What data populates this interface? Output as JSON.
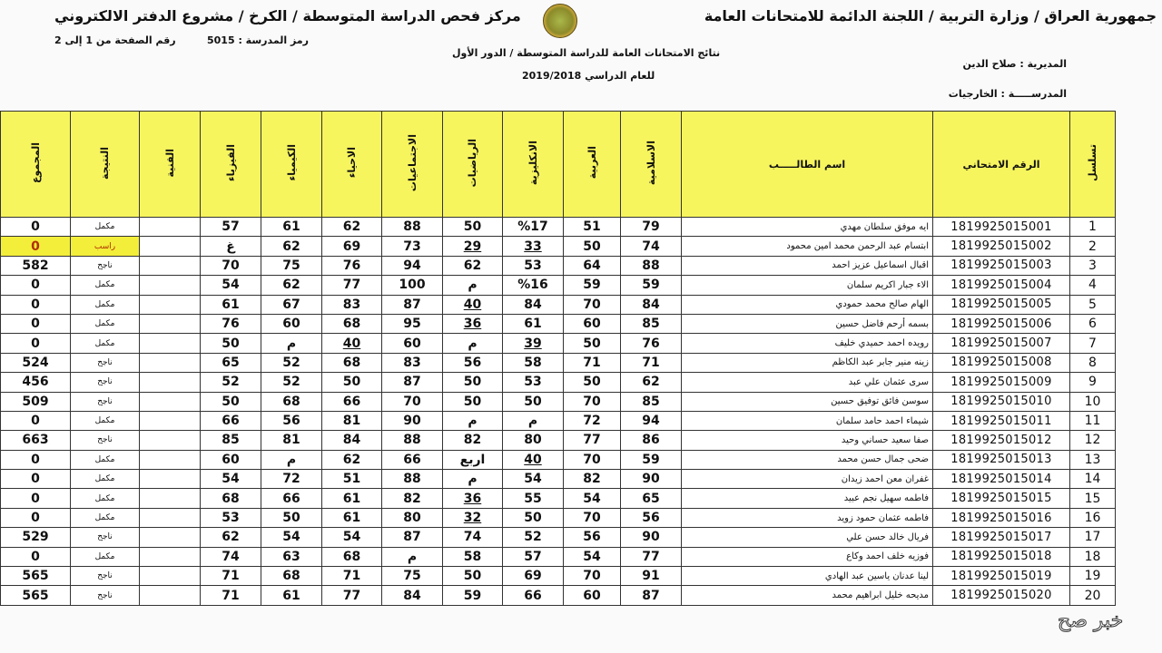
{
  "header": {
    "right_title": "جمهورية العراق / وزارة التربية / اللجنة الدائمة للامتحانات العامة",
    "left_title": "مركز فحص الدراسة المتوسطة / الكرخ / مشروع الدفتر الالكتروني",
    "page_info": "رقم الصفحة من  1 إلى 2",
    "school_code": "رمز المدرسة :  5015",
    "results_title": "نتائج الامتحانات العامة للدراسة المتوسطة / الدور الأول",
    "academic_year": "للعام الدراسي   2019/2018",
    "directorate": "المديرية :   صلاح الدين",
    "school": "المدرســـــة :   الخارجيات"
  },
  "columns": [
    "تسلسل",
    "الرقم الامتحاني",
    "اسم الطالـــــب",
    "الاسلامية",
    "العربية",
    "الانكليزية",
    "الرياضيات",
    "الاجتماعيات",
    "الاحياء",
    "الكيمياء",
    "الفيزياء",
    "الفنية",
    "النتيجة",
    "المجموع"
  ],
  "rows": [
    {
      "cells": [
        "1",
        "1819925015001",
        "ايه موفق سلطان مهدي",
        "79",
        "51",
        "%17",
        "50",
        "88",
        "62",
        "61",
        "57",
        "",
        "مكمل",
        "0"
      ]
    },
    {
      "cells": [
        "2",
        "1819925015002",
        "ابتسام عبد الرحمن محمد امين محمود",
        "74",
        "50",
        "33",
        "29",
        "73",
        "69",
        "62",
        "غ",
        "",
        "راسب",
        "0"
      ],
      "highlight": true
    },
    {
      "cells": [
        "3",
        "1819925015003",
        "اقبال اسماعيل عزيز احمد",
        "88",
        "64",
        "53",
        "62",
        "94",
        "76",
        "75",
        "70",
        "",
        "ناجح",
        "582"
      ]
    },
    {
      "cells": [
        "4",
        "1819925015004",
        "الاء جبار اكريم سلمان",
        "59",
        "59",
        "%16",
        "م",
        "100",
        "77",
        "62",
        "54",
        "",
        "مكمل",
        "0"
      ]
    },
    {
      "cells": [
        "5",
        "1819925015005",
        "الهام صالح محمد حمودي",
        "84",
        "70",
        "84",
        "40",
        "87",
        "83",
        "67",
        "61",
        "",
        "مكمل",
        "0"
      ]
    },
    {
      "cells": [
        "6",
        "1819925015006",
        "بسمه أرحم فاضل حسين",
        "85",
        "60",
        "61",
        "36",
        "95",
        "68",
        "60",
        "76",
        "",
        "مكمل",
        "0"
      ]
    },
    {
      "cells": [
        "7",
        "1819925015007",
        "رويده احمد حميدي خليف",
        "76",
        "50",
        "39",
        "م",
        "60",
        "40",
        "م",
        "50",
        "",
        "مكمل",
        "0"
      ]
    },
    {
      "cells": [
        "8",
        "1819925015008",
        "زينه منير جابر عبد الكاظم",
        "71",
        "71",
        "58",
        "56",
        "83",
        "68",
        "52",
        "65",
        "",
        "ناجح",
        "524"
      ]
    },
    {
      "cells": [
        "9",
        "1819925015009",
        "سرى عثمان علي عبد",
        "62",
        "50",
        "53",
        "50",
        "87",
        "50",
        "52",
        "52",
        "",
        "ناجح",
        "456"
      ]
    },
    {
      "cells": [
        "10",
        "1819925015010",
        "سوسن فائق توفيق حسين",
        "85",
        "70",
        "50",
        "50",
        "70",
        "66",
        "68",
        "50",
        "",
        "ناجح",
        "509"
      ]
    },
    {
      "cells": [
        "11",
        "1819925015011",
        "شيماء احمد حامد سلمان",
        "94",
        "72",
        "م",
        "م",
        "90",
        "81",
        "56",
        "66",
        "",
        "مكمل",
        "0"
      ]
    },
    {
      "cells": [
        "12",
        "1819925015012",
        "صفا سعيد حساني وحيد",
        "86",
        "77",
        "80",
        "82",
        "88",
        "84",
        "81",
        "85",
        "",
        "ناجح",
        "663"
      ]
    },
    {
      "cells": [
        "13",
        "1819925015013",
        "ضحى جمال حسن محمد",
        "59",
        "70",
        "40",
        "اربع",
        "66",
        "62",
        "م",
        "60",
        "",
        "مكمل",
        "0"
      ]
    },
    {
      "cells": [
        "14",
        "1819925015014",
        "غفران معن احمد زيدان",
        "90",
        "82",
        "54",
        "م",
        "88",
        "51",
        "72",
        "54",
        "",
        "مكمل",
        "0"
      ]
    },
    {
      "cells": [
        "15",
        "1819925015015",
        "فاطمه سهيل نجم عبيد",
        "65",
        "54",
        "55",
        "36",
        "82",
        "61",
        "66",
        "68",
        "",
        "مكمل",
        "0"
      ]
    },
    {
      "cells": [
        "16",
        "1819925015016",
        "فاطمه عثمان حمود زويد",
        "56",
        "70",
        "50",
        "32",
        "80",
        "61",
        "50",
        "53",
        "",
        "مكمل",
        "0"
      ]
    },
    {
      "cells": [
        "17",
        "1819925015017",
        "فريال خالد حسن علي",
        "90",
        "56",
        "52",
        "74",
        "87",
        "54",
        "54",
        "62",
        "",
        "ناجح",
        "529"
      ]
    },
    {
      "cells": [
        "18",
        "1819925015018",
        "فوزيه خلف احمد وكاع",
        "77",
        "54",
        "57",
        "58",
        "م",
        "68",
        "63",
        "74",
        "",
        "مكمل",
        "0"
      ]
    },
    {
      "cells": [
        "19",
        "1819925015019",
        "لينا عدنان ياسين عبد الهادي",
        "91",
        "70",
        "69",
        "50",
        "75",
        "71",
        "68",
        "71",
        "",
        "ناجح",
        "565"
      ]
    },
    {
      "cells": [
        "20",
        "1819925015020",
        "مديحه خليل ابراهيم محمد",
        "87",
        "60",
        "66",
        "59",
        "84",
        "77",
        "61",
        "71",
        "",
        "ناجح",
        "565"
      ]
    }
  ],
  "colors": {
    "header_bg": "#f7f55e",
    "highlight_bg": "#f3ee3a",
    "highlight_text": "#b03000"
  },
  "watermark": "خبر صح"
}
